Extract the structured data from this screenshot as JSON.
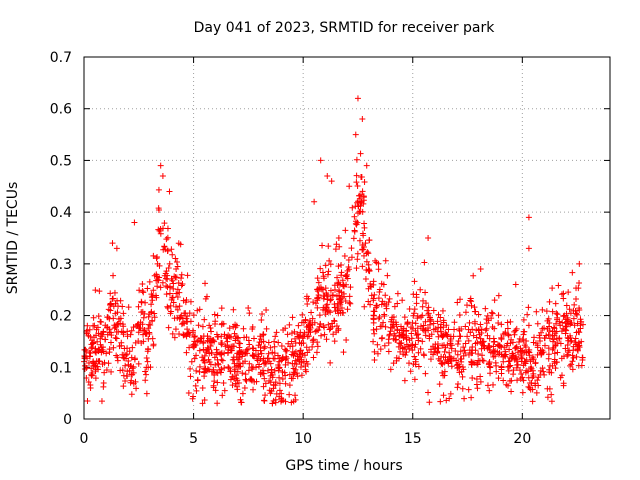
{
  "chart_data": {
    "type": "scatter",
    "title": "Day 041 of 2023, SRMTID for receiver park",
    "xlabel": "GPS time / hours",
    "ylabel": "SRMTID / TECUs",
    "xlim": [
      0,
      24
    ],
    "ylim": [
      0,
      0.7
    ],
    "grid": true,
    "marker": "plus",
    "color": "#ff0000",
    "x_ticks": [
      {
        "value": 0,
        "label": "0"
      },
      {
        "value": 5,
        "label": "5"
      },
      {
        "value": 10,
        "label": "10"
      },
      {
        "value": 15,
        "label": "15"
      },
      {
        "value": 20,
        "label": "20"
      }
    ],
    "y_ticks": [
      {
        "value": 0,
        "label": "0"
      },
      {
        "value": 0.1,
        "label": "0.1"
      },
      {
        "value": 0.2,
        "label": "0.2"
      },
      {
        "value": 0.3,
        "label": "0.3"
      },
      {
        "value": 0.4,
        "label": "0.4"
      },
      {
        "value": 0.5,
        "label": "0.5"
      },
      {
        "value": 0.6,
        "label": "0.6"
      },
      {
        "value": 0.7,
        "label": "0.7"
      }
    ],
    "series": [
      {
        "name": "SRMTID",
        "profile": {
          "x": [
            0,
            0.5,
            1.0,
            1.3,
            1.6,
            2.0,
            2.3,
            2.6,
            2.9,
            3.2,
            3.5,
            3.7,
            3.9,
            4.1,
            4.4,
            4.7,
            5.0,
            5.5,
            6.0,
            6.5,
            7.0,
            7.5,
            8.0,
            8.5,
            9.0,
            9.5,
            10.0,
            10.3,
            10.7,
            11.0,
            11.5,
            12.0,
            12.3,
            12.6,
            12.9,
            13.2,
            13.6,
            14.0,
            14.5,
            15.0,
            15.5,
            16.0,
            16.5,
            17.0,
            17.5,
            18.0,
            18.5,
            19.0,
            19.5,
            20.0,
            20.5,
            21.0,
            21.5,
            22.0,
            22.5,
            22.8
          ],
          "y": [
            0.13,
            0.12,
            0.14,
            0.22,
            0.16,
            0.12,
            0.11,
            0.19,
            0.14,
            0.24,
            0.34,
            0.32,
            0.25,
            0.25,
            0.24,
            0.19,
            0.13,
            0.13,
            0.12,
            0.12,
            0.11,
            0.12,
            0.11,
            0.1,
            0.09,
            0.11,
            0.15,
            0.18,
            0.22,
            0.24,
            0.22,
            0.26,
            0.34,
            0.44,
            0.3,
            0.22,
            0.19,
            0.17,
            0.16,
            0.16,
            0.18,
            0.15,
            0.14,
            0.13,
            0.15,
            0.15,
            0.14,
            0.14,
            0.13,
            0.12,
            0.11,
            0.13,
            0.15,
            0.16,
            0.17,
            0.16
          ],
          "point_count": 1900,
          "spread": 0.055
        },
        "spikes": [
          {
            "x": 0.3,
            "y": 0.06
          },
          {
            "x": 1.3,
            "y": 0.34
          },
          {
            "x": 1.5,
            "y": 0.33
          },
          {
            "x": 2.3,
            "y": 0.38
          },
          {
            "x": 3.5,
            "y": 0.49
          },
          {
            "x": 3.6,
            "y": 0.47
          },
          {
            "x": 3.9,
            "y": 0.44
          },
          {
            "x": 8.6,
            "y": 0.03
          },
          {
            "x": 9.0,
            "y": 0.04
          },
          {
            "x": 10.5,
            "y": 0.42
          },
          {
            "x": 10.8,
            "y": 0.5
          },
          {
            "x": 11.1,
            "y": 0.47
          },
          {
            "x": 11.3,
            "y": 0.46
          },
          {
            "x": 12.1,
            "y": 0.45
          },
          {
            "x": 12.4,
            "y": 0.55
          },
          {
            "x": 12.5,
            "y": 0.62
          },
          {
            "x": 12.7,
            "y": 0.58
          },
          {
            "x": 12.9,
            "y": 0.49
          },
          {
            "x": 15.7,
            "y": 0.35
          },
          {
            "x": 18.1,
            "y": 0.29
          },
          {
            "x": 19.7,
            "y": 0.26
          },
          {
            "x": 20.3,
            "y": 0.39
          },
          {
            "x": 20.3,
            "y": 0.33
          },
          {
            "x": 22.6,
            "y": 0.3
          }
        ]
      }
    ]
  }
}
